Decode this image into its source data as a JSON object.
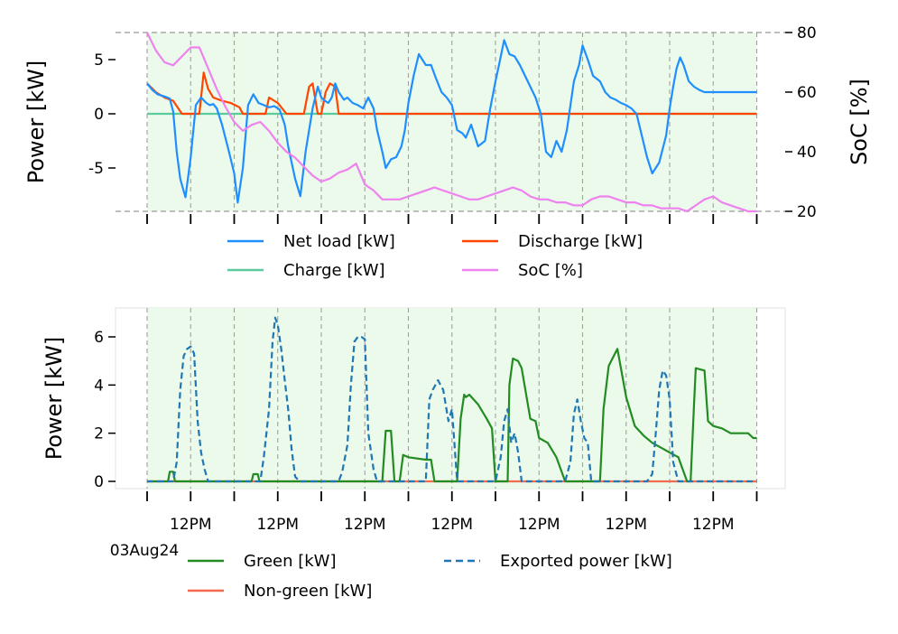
{
  "chart_data": [
    {
      "type": "line",
      "panel": "top",
      "ylabel": "Power [kW]",
      "ylim": [
        -9,
        7.5
      ],
      "yticks": [
        5,
        0,
        -5
      ],
      "y2label": "SoC [%]",
      "y2lim": [
        20,
        80
      ],
      "y2ticks": [
        80,
        60,
        40,
        20
      ],
      "x_range_days": [
        0,
        7
      ],
      "grid": "vertical dashed at 12AM/12PM",
      "legend_placement": "below plot, 2 columns",
      "series": [
        {
          "name": "Net load [kW]",
          "axis": "left",
          "color": "#1f8fff",
          "style": "solid",
          "x": [
            0,
            0.06,
            0.12,
            0.2,
            0.26,
            0.3,
            0.34,
            0.38,
            0.44,
            0.5,
            0.56,
            0.62,
            0.68,
            0.72,
            0.76,
            0.8,
            0.86,
            0.94,
            1.0,
            1.04,
            1.1,
            1.16,
            1.22,
            1.28,
            1.34,
            1.4,
            1.46,
            1.52,
            1.58,
            1.62,
            1.7,
            1.76,
            1.82,
            1.9,
            1.96,
            2.0,
            2.04,
            2.08,
            2.12,
            2.16,
            2.2,
            2.26,
            2.3,
            2.36,
            2.42,
            2.48,
            2.54,
            2.6,
            2.64,
            2.7,
            2.74,
            2.8,
            2.86,
            2.92,
            2.96,
            3.0,
            3.06,
            3.12,
            3.2,
            3.26,
            3.32,
            3.38,
            3.44,
            3.5,
            3.56,
            3.62,
            3.66,
            3.72,
            3.8,
            3.88,
            3.94,
            4.0,
            4.04,
            4.1,
            4.16,
            4.22,
            4.28,
            4.34,
            4.4,
            4.46,
            4.52,
            4.58,
            4.64,
            4.7,
            4.76,
            4.82,
            4.9,
            4.96,
            5.0,
            5.06,
            5.12,
            5.2,
            5.26,
            5.32,
            5.38,
            5.44,
            5.5,
            5.56,
            5.62,
            5.68,
            5.74,
            5.8,
            5.88,
            5.96,
            6.0,
            6.04,
            6.08,
            6.12,
            6.16,
            6.22,
            6.28,
            6.34,
            6.4,
            6.46,
            6.52,
            6.58,
            6.64,
            6.7,
            6.76,
            6.82,
            6.88,
            6.94,
            7.0
          ],
          "y": [
            2.8,
            2.2,
            1.8,
            1.6,
            1.4,
            0.2,
            -3.5,
            -6.0,
            -7.7,
            -4.0,
            0.8,
            1.5,
            1.0,
            0.8,
            0.9,
            0.5,
            -1.0,
            -3.5,
            -5.5,
            -8.2,
            -5.0,
            0.8,
            1.8,
            1.0,
            0.8,
            0.6,
            0.7,
            0.4,
            -1.0,
            -3.0,
            -6.0,
            -7.6,
            -3.5,
            0.5,
            2.5,
            1.5,
            1.2,
            1.0,
            1.5,
            2.8,
            2.0,
            1.3,
            1.5,
            1.0,
            0.8,
            0.5,
            1.5,
            0.5,
            -1.5,
            -3.5,
            -5.0,
            -4.2,
            -4.0,
            -3.0,
            -1.5,
            1.0,
            3.5,
            5.5,
            4.5,
            4.5,
            3.2,
            2.0,
            1.5,
            0.8,
            -1.5,
            -1.8,
            -2.2,
            -1.0,
            -3.0,
            -2.5,
            0.5,
            3.0,
            4.5,
            6.8,
            5.5,
            5.3,
            4.5,
            3.5,
            2.5,
            1.5,
            0.0,
            -3.5,
            -4.0,
            -2.5,
            -3.5,
            -1.5,
            3.0,
            4.5,
            6.3,
            5.0,
            3.5,
            3.0,
            2.0,
            1.5,
            1.3,
            1.0,
            0.8,
            0.5,
            0.0,
            -2.0,
            -4.0,
            -5.5,
            -4.5,
            -2.0,
            0.5,
            2.5,
            4.2,
            5.2,
            4.5,
            3.0,
            2.5,
            2.2,
            2.0,
            2.0,
            2.0,
            2.0,
            2.0,
            2.0,
            2.0,
            2.0,
            2.0,
            2.0,
            2.0
          ]
        },
        {
          "name": "Discharge [kW]",
          "axis": "left",
          "color": "#ff4500",
          "style": "solid",
          "x": [
            0,
            0.1,
            0.2,
            0.3,
            0.4,
            0.5,
            0.55,
            0.6,
            0.65,
            0.7,
            0.76,
            0.86,
            0.96,
            1.06,
            1.1,
            1.2,
            1.3,
            1.36,
            1.4,
            1.5,
            1.6,
            1.7,
            1.8,
            1.86,
            1.9,
            1.96,
            2.0,
            2.05,
            2.1,
            2.16,
            2.2,
            2.3,
            2.4,
            2.5,
            2.6,
            2.7,
            2.8,
            2.9,
            3.0,
            3.1,
            3.2,
            3.3,
            3.4,
            3.5,
            3.6,
            3.7,
            3.8,
            3.9,
            4.0,
            4.1,
            4.2,
            4.3,
            4.4,
            4.5,
            4.6,
            4.7,
            4.8,
            4.9,
            5.0,
            5.1,
            5.2,
            5.3,
            5.4,
            5.5,
            5.6,
            5.7,
            5.8,
            5.9,
            6.0,
            6.1,
            6.2,
            6.3,
            6.4,
            6.5,
            6.6,
            6.7,
            6.8,
            6.9,
            7.0
          ],
          "y": [
            2.8,
            2.0,
            1.5,
            1.2,
            0.0,
            0.0,
            0.0,
            0.0,
            3.8,
            2.3,
            1.5,
            1.2,
            1.0,
            0.6,
            0.0,
            0.0,
            0.0,
            0.0,
            1.5,
            1.0,
            0.0,
            0.0,
            0.0,
            2.5,
            2.8,
            0.0,
            0.0,
            2.0,
            2.8,
            2.5,
            0.0,
            0.0,
            0.0,
            0.0,
            0.0,
            0.0,
            0.0,
            0.0,
            0.0,
            0.0,
            0.0,
            0.0,
            0.0,
            0.0,
            0.0,
            0.0,
            0.0,
            0.0,
            0.0,
            0.0,
            0.0,
            0.0,
            0.0,
            0.0,
            0.0,
            0.0,
            0.0,
            0.0,
            0.0,
            0.0,
            0.0,
            0.0,
            0.0,
            0.0,
            0.0,
            0.0,
            0.0,
            0.0,
            0.0,
            0.0,
            0.0,
            0.0,
            0.0,
            0.0,
            0.0,
            0.0,
            0.0,
            0.0,
            0.0
          ]
        },
        {
          "name": "Charge [kW]",
          "axis": "left",
          "color": "#5ccb9c",
          "style": "solid",
          "x": [
            0,
            7
          ],
          "y": [
            0,
            0
          ]
        },
        {
          "name": "SoC [%]",
          "axis": "right",
          "color": "#ee82ee",
          "style": "solid",
          "x": [
            0,
            0.1,
            0.2,
            0.3,
            0.4,
            0.5,
            0.6,
            0.7,
            0.8,
            0.9,
            1.0,
            1.1,
            1.2,
            1.3,
            1.4,
            1.5,
            1.6,
            1.7,
            1.8,
            1.9,
            2.0,
            2.1,
            2.2,
            2.3,
            2.4,
            2.5,
            2.6,
            2.7,
            2.8,
            2.9,
            3.0,
            3.1,
            3.2,
            3.3,
            3.4,
            3.5,
            3.6,
            3.7,
            3.8,
            3.9,
            4.0,
            4.1,
            4.2,
            4.3,
            4.4,
            4.5,
            4.6,
            4.7,
            4.8,
            4.9,
            5.0,
            5.1,
            5.2,
            5.3,
            5.4,
            5.5,
            5.6,
            5.7,
            5.8,
            5.9,
            6.0,
            6.1,
            6.2,
            6.3,
            6.4,
            6.5,
            6.6,
            6.7,
            6.8,
            6.9,
            7.0
          ],
          "y": [
            80,
            74,
            70,
            69,
            72,
            75,
            75,
            68,
            61,
            55,
            50,
            47,
            49,
            50,
            47,
            43,
            40,
            38,
            35,
            32,
            30,
            31,
            33,
            34,
            36,
            29,
            27,
            24,
            24,
            24,
            25,
            26,
            27,
            28,
            27,
            26,
            25,
            24,
            24,
            25,
            26,
            27,
            28,
            27,
            25,
            24,
            24,
            23,
            23,
            22,
            22,
            24,
            25,
            25,
            24,
            23,
            23,
            22,
            22,
            21,
            21,
            21,
            20,
            22,
            24,
            25,
            23,
            22,
            21,
            20,
            20
          ]
        }
      ]
    },
    {
      "type": "line",
      "panel": "bottom",
      "ylabel": "Power [kW]",
      "ylim": [
        -0.3,
        7.2
      ],
      "yticks": [
        6,
        4,
        2,
        0
      ],
      "xtick_labels": [
        "12PM",
        "12PM",
        "12PM",
        "12PM",
        "12PM",
        "12PM",
        "12PM"
      ],
      "x_start_label": "03Aug24",
      "x_range_days": [
        0,
        7
      ],
      "grid": "vertical dashed at 12AM/12PM",
      "legend_placement": "below plot, 2 columns",
      "series": [
        {
          "name": "Green [kW]",
          "color": "#228b22",
          "style": "solid",
          "x": [
            0,
            0.24,
            0.26,
            0.3,
            0.32,
            1.2,
            1.22,
            1.27,
            1.29,
            2.7,
            2.74,
            2.8,
            2.84,
            2.9,
            2.94,
            3.0,
            3.2,
            3.26,
            3.3,
            3.4,
            3.5,
            3.56,
            3.6,
            3.64,
            3.66,
            3.7,
            3.8,
            3.9,
            3.96,
            4.0,
            4.14,
            4.16,
            4.2,
            4.26,
            4.3,
            4.4,
            4.46,
            4.5,
            4.6,
            4.7,
            4.8,
            4.9,
            4.96,
            5.2,
            5.24,
            5.3,
            5.4,
            5.5,
            5.6,
            5.7,
            5.8,
            5.9,
            6.0,
            6.1,
            6.2,
            6.24,
            6.28,
            6.3,
            6.4,
            6.44,
            6.5,
            6.6,
            6.7,
            6.8,
            6.9,
            6.96,
            7.0
          ],
          "y": [
            0,
            0,
            0.4,
            0.4,
            0,
            0,
            0.3,
            0.3,
            0,
            0,
            2.1,
            2.1,
            0,
            0,
            1.1,
            1.0,
            0.9,
            0.9,
            0,
            0,
            0,
            0,
            2.6,
            3.6,
            3.5,
            3.6,
            3.2,
            2.6,
            2.2,
            0,
            0,
            4.0,
            5.1,
            5.0,
            4.7,
            2.6,
            2.5,
            1.8,
            1.6,
            1.0,
            0,
            0,
            0,
            0,
            3.0,
            4.8,
            5.5,
            3.5,
            2.3,
            1.9,
            1.6,
            1.4,
            1.2,
            1.0,
            0,
            0,
            3.2,
            4.7,
            4.6,
            2.5,
            2.3,
            2.2,
            2.0,
            2.0,
            2.0,
            1.8,
            1.8
          ]
        },
        {
          "name": "Non-green [kW]",
          "color": "#f26b4f",
          "style": "solid",
          "x": [
            0,
            7
          ],
          "y": [
            0,
            0
          ]
        },
        {
          "name": "Exported power [kW]",
          "color": "#1f77b4",
          "style": "dashed",
          "x": [
            0,
            0.3,
            0.34,
            0.38,
            0.42,
            0.46,
            0.5,
            0.54,
            0.58,
            0.62,
            0.66,
            0.7,
            0.75,
            1.0,
            1.3,
            1.34,
            1.4,
            1.44,
            1.47,
            1.5,
            1.54,
            1.58,
            1.62,
            1.66,
            1.7,
            1.75,
            2.2,
            2.24,
            2.3,
            2.34,
            2.38,
            2.42,
            2.46,
            2.5,
            2.54,
            2.6,
            2.64,
            2.7,
            3.0,
            3.1,
            3.2,
            3.24,
            3.28,
            3.34,
            3.4,
            3.46,
            3.5,
            3.56,
            4.0,
            4.06,
            4.1,
            4.14,
            4.18,
            4.22,
            4.26,
            4.3,
            4.8,
            4.86,
            4.9,
            4.94,
            4.98,
            5.02,
            5.06,
            5.1,
            5.74,
            5.8,
            5.84,
            5.88,
            5.92,
            5.96,
            6.0,
            6.04,
            6.1,
            6.14,
            7.0
          ],
          "y": [
            0,
            0,
            0.8,
            3.8,
            5.2,
            5.5,
            5.6,
            5.3,
            2.5,
            1.2,
            0.5,
            0,
            0,
            0,
            0,
            1.0,
            3.0,
            5.8,
            6.8,
            6.5,
            5.5,
            4.2,
            3.0,
            1.3,
            0.2,
            0,
            0,
            0.4,
            1.5,
            4.0,
            5.8,
            6.0,
            6.0,
            5.9,
            2.0,
            0.5,
            0,
            0,
            0,
            0,
            0,
            3.4,
            3.8,
            4.2,
            3.8,
            2.5,
            3.0,
            0,
            0,
            1.0,
            2.5,
            3.0,
            1.6,
            2.0,
            1.2,
            0,
            0,
            0.8,
            2.8,
            3.4,
            2.5,
            1.8,
            1.6,
            0,
            0,
            0.3,
            2.0,
            3.8,
            4.6,
            4.4,
            3.4,
            0.8,
            0,
            0,
            0
          ]
        }
      ]
    }
  ]
}
